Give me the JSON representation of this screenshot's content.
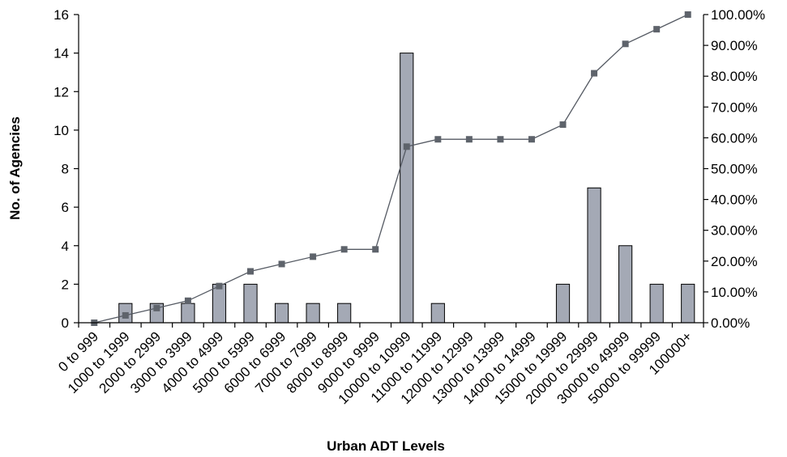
{
  "chart_data": {
    "type": "bar",
    "xlabel": "Urban ADT Levels",
    "ylabel": "No. of Agencies",
    "ylabel_right": "",
    "categories": [
      "0 to 999",
      "1000 to 1999",
      "2000 to 2999",
      "3000 to 3999",
      "4000 to 4999",
      "5000 to 5999",
      "6000 to 6999",
      "7000 to 7999",
      "8000 to 8999",
      "9000 to 9999",
      "10000 to 10999",
      "11000 to 11999",
      "12000 to 12999",
      "13000 to 13999",
      "14000 to 14999",
      "15000 to 19999",
      "20000 to 29999",
      "30000 to 49999",
      "50000 to 99999",
      "100000+"
    ],
    "series": [
      {
        "type": "bar",
        "values": [
          0,
          1,
          1,
          1,
          2,
          2,
          1,
          1,
          1,
          0,
          14,
          1,
          0,
          0,
          0,
          2,
          7,
          4,
          2,
          2
        ]
      },
      {
        "type": "line",
        "axis": "right",
        "values": [
          0.0,
          2.38,
          4.76,
          7.14,
          11.9,
          16.67,
          19.05,
          21.43,
          23.81,
          23.81,
          57.14,
          59.52,
          59.52,
          59.52,
          59.52,
          64.29,
          80.95,
          90.48,
          95.24,
          100.0
        ]
      }
    ],
    "ylim": [
      0,
      16
    ],
    "yticks": [
      "0",
      "2",
      "4",
      "6",
      "8",
      "10",
      "12",
      "14",
      "16"
    ],
    "ylim_right": [
      0,
      100
    ],
    "yticks_right": [
      "0.00%",
      "10.00%",
      "20.00%",
      "30.00%",
      "40.00%",
      "50.00%",
      "60.00%",
      "70.00%",
      "80.00%",
      "90.00%",
      "100.00%"
    ],
    "grid": false,
    "colors": {
      "bar_fill": "#a4a9b5",
      "bar_stroke": "#000000",
      "line": "#555a63",
      "marker": "#5e636b"
    }
  }
}
